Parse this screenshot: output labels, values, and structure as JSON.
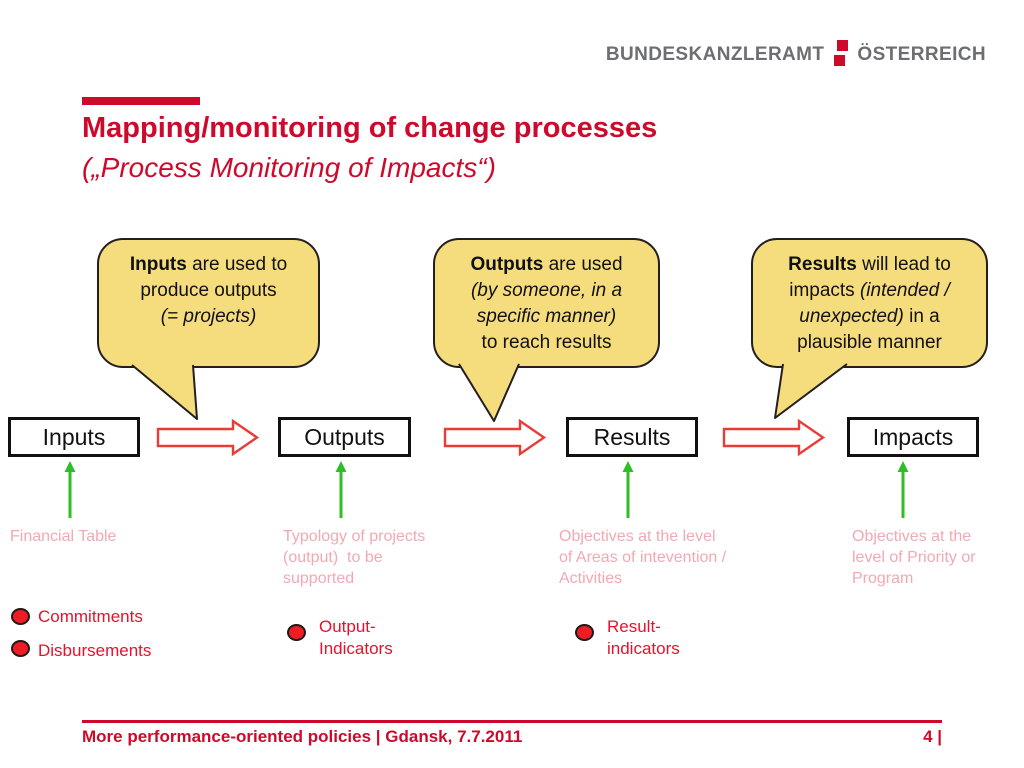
{
  "logo": {
    "left": "BUNDESKANZLERAMT",
    "right": "ÖSTERREICH"
  },
  "title": {
    "line1": "Mapping/monitoring of change processes",
    "line2": "(„Process Monitoring of Impacts“)"
  },
  "bubbles": [
    {
      "lines": [
        [
          {
            "t": "Inputs",
            "b": 1
          },
          {
            "t": " are used to"
          }
        ],
        [
          {
            "t": "produce outputs"
          }
        ],
        [
          {
            "t": "(= projects)",
            "i": 1
          }
        ]
      ]
    },
    {
      "lines": [
        [
          {
            "t": "Outputs",
            "b": 1
          },
          {
            "t": " are used"
          }
        ],
        [
          {
            "t": "(by someone, in a",
            "i": 1
          }
        ],
        [
          {
            "t": "specific manner)",
            "i": 1
          }
        ],
        [
          {
            "t": "to reach results"
          }
        ]
      ]
    },
    {
      "lines": [
        [
          {
            "t": "Results",
            "b": 1
          },
          {
            "t": " will lead to"
          }
        ],
        [
          {
            "t": "impacts "
          },
          {
            "t": "(intended /",
            "i": 1
          }
        ],
        [
          {
            "t": "unexpected)",
            "i": 1
          },
          {
            "t": " in a"
          }
        ],
        [
          {
            "t": "plausible manner"
          }
        ]
      ]
    }
  ],
  "boxes": [
    "Inputs",
    "Outputs",
    "Results",
    "Impacts"
  ],
  "annotations": [
    "Financial Table",
    "Typology of projects\n(output)  to be\nsupported",
    "Objectives at the level\nof Areas of intevention /\nActivities",
    "Objectives at the\nlevel of Priority or\nProgram"
  ],
  "indicators": [
    "Commitments",
    "Disbursements",
    "Output-\nIndicators",
    "Result-\nindicators"
  ],
  "footer": {
    "left": "More performance-oriented policies | Gdansk, 7.7.2011",
    "page": "4 |"
  },
  "colors": {
    "accent": "#CE0A2C",
    "gray": "#6D6E71",
    "bubble-fill": "#F5DC7D",
    "bubble-border": "#231F20",
    "arrow-red": "#E93C37",
    "dot-red": "#EE1C25",
    "label-red": "#E8112D",
    "pink": "#F2A9B4",
    "green": "#2EBE25"
  }
}
